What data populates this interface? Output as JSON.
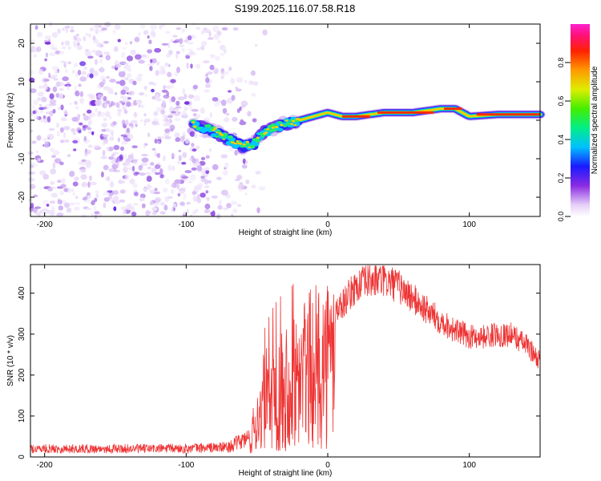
{
  "title": "S199.2025.116.07.58.R18",
  "chart_data": [
    {
      "type": "heatmap",
      "xlabel": "Height of straight line (km)",
      "ylabel": "Frequency (Hz)",
      "xlim": [
        -210,
        150
      ],
      "ylim": [
        -25,
        25
      ],
      "xticks": [
        -200,
        -100,
        0,
        100
      ],
      "yticks": [
        -20,
        -10,
        0,
        10,
        20
      ],
      "colorbar": {
        "label": "Normalized spectral amplitude",
        "range": [
          0,
          1
        ],
        "ticks": [
          "0.0",
          "0.2",
          "0.4",
          "0.6",
          "0.8"
        ],
        "tick_values": [
          0.0,
          0.2,
          0.4,
          0.6,
          0.8
        ]
      },
      "ridge": {
        "x": [
          -95,
          -80,
          -70,
          -60,
          -52,
          -45,
          -38,
          -30,
          -20,
          -10,
          0,
          10,
          20,
          40,
          60,
          80,
          90,
          100,
          120,
          150
        ],
        "y": [
          -1,
          -3,
          -5,
          -7,
          -6,
          -3,
          -2,
          -1,
          0,
          1,
          2,
          1,
          1,
          2,
          2,
          3,
          3,
          1,
          1.5,
          1.5
        ]
      }
    },
    {
      "type": "line",
      "xlabel": "Height of straight line (km)",
      "ylabel": "SNR (10 * v/v)",
      "xlim": [
        -210,
        150
      ],
      "ylim": [
        0,
        470
      ],
      "xticks": [
        -200,
        -100,
        0,
        100
      ],
      "yticks": [
        0,
        100,
        200,
        300,
        400
      ],
      "color": "#ee3333",
      "envelope": {
        "x": [
          -210,
          -150,
          -100,
          -70,
          -55,
          -50,
          -45,
          -40,
          -35,
          -30,
          -25,
          -20,
          -15,
          -10,
          0,
          10,
          20,
          30,
          40,
          50,
          60,
          70,
          80,
          90,
          100,
          110,
          120,
          130,
          140,
          150
        ],
        "y": [
          25,
          25,
          26,
          30,
          60,
          130,
          200,
          230,
          250,
          260,
          270,
          290,
          310,
          320,
          345,
          380,
          425,
          440,
          440,
          425,
          395,
          365,
          340,
          315,
          300,
          300,
          305,
          305,
          280,
          240
        ]
      }
    }
  ]
}
